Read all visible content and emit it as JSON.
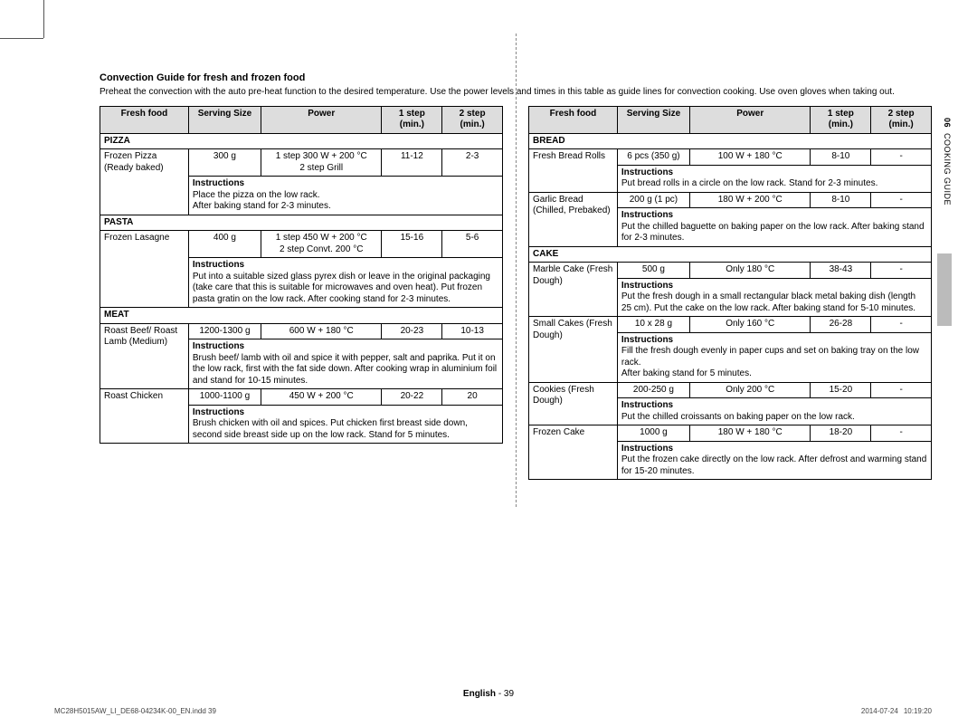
{
  "title": "Convection Guide for fresh and frozen food",
  "intro": "Preheat the convection with the auto pre-heat function to the desired temperature. Use the power levels and times in this table as guide lines for convection cooking. Use oven gloves when taking out.",
  "headers": {
    "c1": "Fresh food",
    "c2": "Serving Size",
    "c3": "Power",
    "c4": "1 step (min.)",
    "c5": "2 step (min.)"
  },
  "instructions_label": "Instructions",
  "left": {
    "pizza": {
      "section": "PIZZA",
      "name": "Frozen Pizza (Ready baked)",
      "size": "300 g",
      "power": "1 step 300 W + 200 °C\n2 step Grill",
      "s1": "11-12",
      "s2": "2-3",
      "instr": "Place the pizza on the low rack.\nAfter baking stand for 2-3 minutes."
    },
    "pasta": {
      "section": "PASTA",
      "name": "Frozen Lasagne",
      "size": "400 g",
      "power": "1 step 450 W + 200 °C\n2 step Convt. 200 °C",
      "s1": "15-16",
      "s2": "5-6",
      "instr": "Put into a suitable sized glass pyrex dish or leave in the original packaging (take care that this is suitable for microwaves and oven heat). Put frozen pasta gratin on the low rack. After cooking stand for 2-3 minutes."
    },
    "meat": {
      "section": "MEAT",
      "r1": {
        "name": "Roast Beef/ Roast Lamb (Medium)",
        "size": "1200-1300 g",
        "power": "600 W + 180 °C",
        "s1": "20-23",
        "s2": "10-13",
        "instr": "Brush beef/ lamb with oil and spice it with pepper, salt and paprika. Put it on the low rack, first with the fat side down. After cooking wrap in aluminium foil and stand for 10-15 minutes."
      },
      "r2": {
        "name": "Roast Chicken",
        "size": "1000-1100 g",
        "power": "450 W + 200 °C",
        "s1": "20-22",
        "s2": "20",
        "instr": "Brush chicken with oil and spices. Put chicken first breast side down, second side breast side up on the low rack. Stand for 5 minutes."
      }
    }
  },
  "right": {
    "bread": {
      "section": "BREAD",
      "r1": {
        "name": "Fresh Bread Rolls",
        "size": "6 pcs (350 g)",
        "power": "100 W + 180 °C",
        "s1": "8-10",
        "s2": "-",
        "instr": "Put bread rolls in a circle on the low rack. Stand for 2-3 minutes."
      },
      "r2": {
        "name": "Garlic Bread (Chilled, Prebaked)",
        "size": "200 g (1 pc)",
        "power": "180 W + 200 °C",
        "s1": "8-10",
        "s2": "-",
        "instr": "Put the chilled baguette on baking paper on the low rack. After baking stand for 2-3 minutes."
      }
    },
    "cake": {
      "section": "CAKE",
      "r1": {
        "name": "Marble Cake (Fresh Dough)",
        "size": "500 g",
        "power": "Only 180 °C",
        "s1": "38-43",
        "s2": "-",
        "instr": "Put the fresh dough in a small rectangular black metal baking dish (length 25 cm). Put the cake on the low rack. After baking stand for 5-10 minutes."
      },
      "r2": {
        "name": "Small Cakes (Fresh Dough)",
        "size": "10 x 28 g",
        "power": "Only 160 °C",
        "s1": "26-28",
        "s2": "-",
        "instr": "Fill the fresh dough evenly in paper cups and set on baking tray on the low rack.\nAfter baking stand for 5 minutes."
      },
      "r3": {
        "name": "Cookies (Fresh Dough)",
        "size": "200-250 g",
        "power": "Only 200 °C",
        "s1": "15-20",
        "s2": "-",
        "instr": "Put the chilled croissants on baking paper on the low rack."
      },
      "r4": {
        "name": "Frozen Cake",
        "size": "1000 g",
        "power": "180 W + 180 °C",
        "s1": "18-20",
        "s2": "-",
        "instr": "Put the frozen cake directly on the low rack. After defrost and warming stand for 15-20 minutes."
      }
    }
  },
  "side": {
    "num": "06",
    "label": "COOKING GUIDE"
  },
  "footer": {
    "lang": "English",
    "page": "- 39"
  },
  "slug": {
    "file": "MC28H5015AW_LI_DE68-04234K-00_EN.indd   39",
    "stamp": "2014-07-24     10:19:20"
  }
}
